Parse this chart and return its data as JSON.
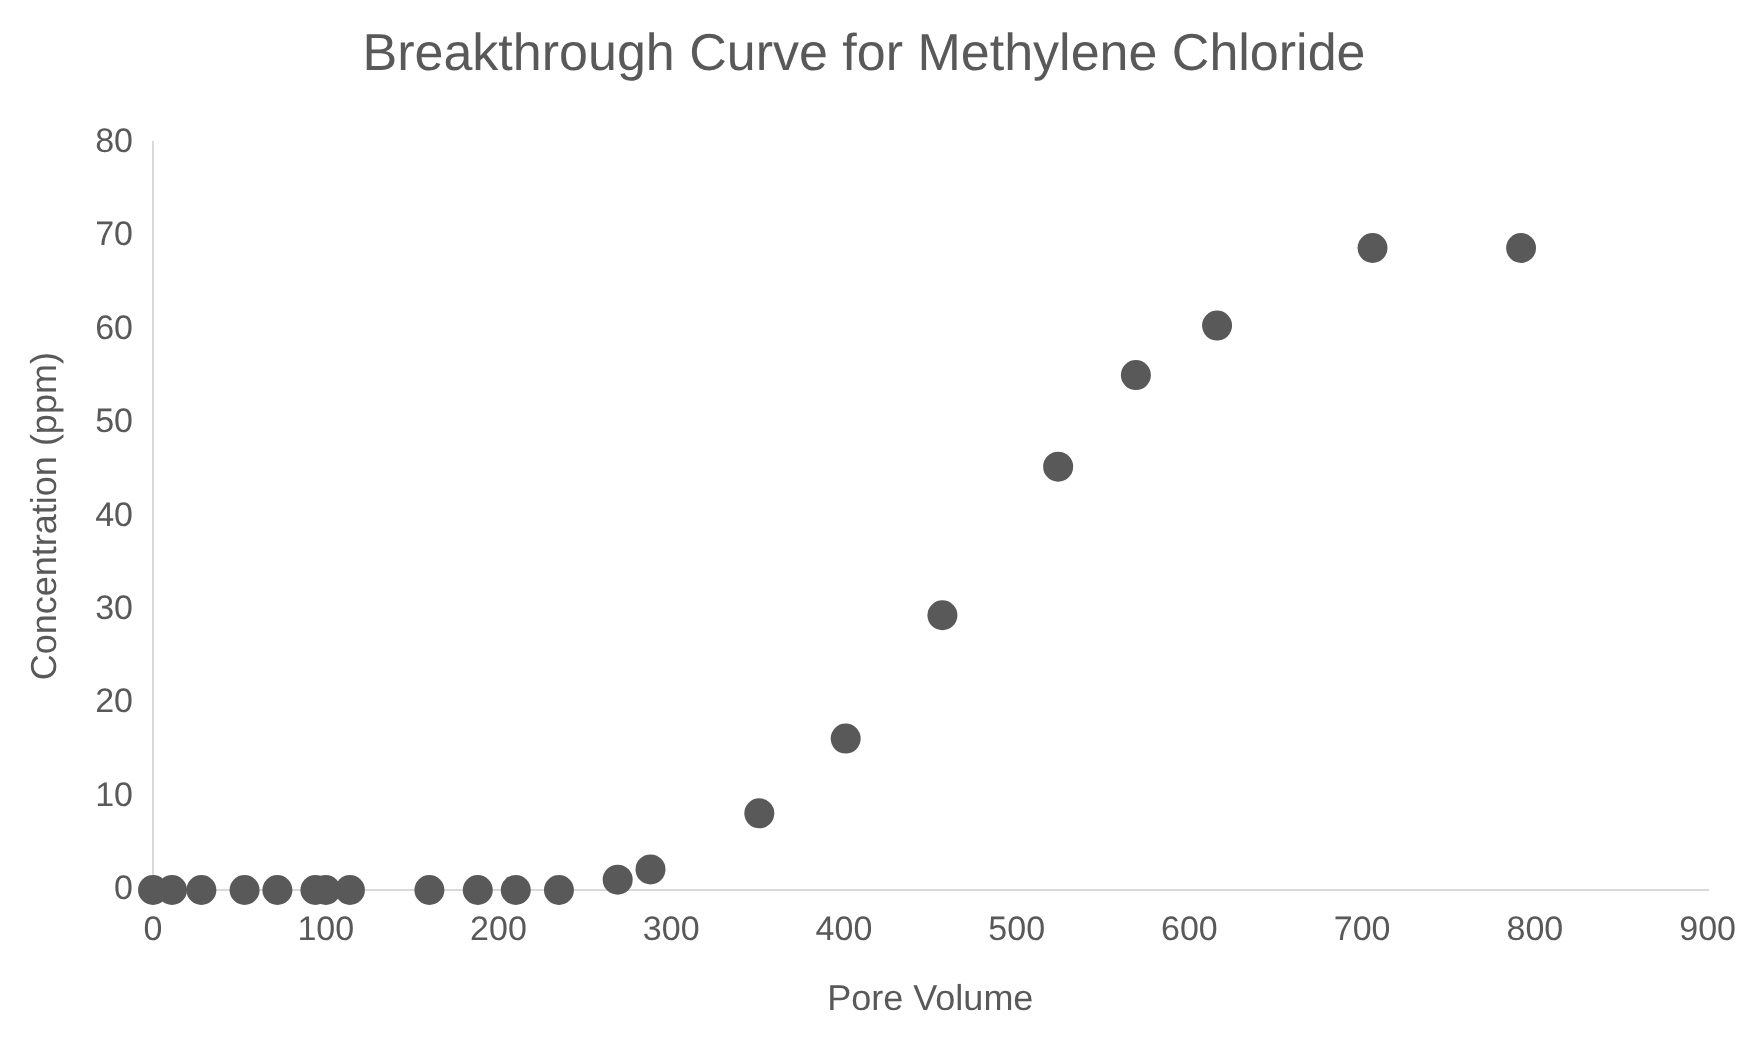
{
  "chart_data": {
    "type": "scatter",
    "title": "Breakthrough Curve for Methylene Chloride",
    "xlabel": "Pore Volume",
    "ylabel": "Concentration (ppm)",
    "x": [
      0,
      11,
      28,
      53,
      72,
      94,
      100,
      114,
      160,
      188,
      210,
      235,
      269,
      288,
      351,
      401,
      457,
      524,
      569,
      616,
      706,
      792
    ],
    "series": [
      {
        "color": "#595959",
        "values": [
          0,
          0,
          0,
          0,
          0,
          0,
          0,
          0,
          0,
          0,
          0,
          0,
          1.1,
          2.2,
          8.2,
          16.2,
          29.4,
          45.3,
          55.1,
          60.4,
          68.7,
          68.7
        ]
      }
    ],
    "xlim": [
      0,
      900
    ],
    "xticks": [
      0,
      100,
      200,
      300,
      400,
      500,
      600,
      700,
      800,
      900
    ],
    "ylim": [
      0,
      80
    ],
    "yticks": [
      0,
      10,
      20,
      30,
      40,
      50,
      60,
      70,
      80
    ],
    "grid": false,
    "legend": false,
    "marker": "circle"
  }
}
